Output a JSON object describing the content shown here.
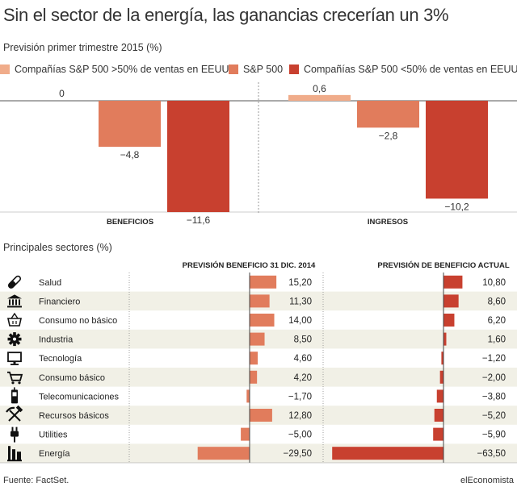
{
  "title": "Sin el sector de la energía, las ganancias crecerían un 3%",
  "top_subtitle": "Previsión primer trimestre 2015 (%)",
  "sectors_subtitle": "Principales sectores (%)",
  "source": "Fuente: FactSet.",
  "brand": "elEconomista",
  "colors": {
    "light": "#f0ac8a",
    "mid": "#e17c5c",
    "dark": "#c8402f",
    "stripe": "#f1f0e6"
  },
  "chart_data": [
    {
      "type": "bar",
      "categories": [
        "BENEFICIOS",
        "INGRESOS"
      ],
      "series": [
        {
          "name": "Compañías S&P 500 >50% de  ventas en EEUU",
          "values": [
            0,
            0.6
          ],
          "labels": [
            "0",
            "0,6"
          ]
        },
        {
          "name": "S&P 500",
          "values": [
            -4.8,
            -2.8
          ],
          "labels": [
            "−4,8",
            "−2,8"
          ]
        },
        {
          "name": "Compañías S&P 500 <50% de  ventas en EEUU",
          "values": [
            -11.6,
            -10.2
          ],
          "labels": [
            "−11,6",
            "−10,2"
          ]
        }
      ],
      "legend_position": "top"
    },
    {
      "type": "bar",
      "orientation": "horizontal",
      "categories": [
        "Salud",
        "Financiero",
        "Consumo no básico",
        "Industria",
        "Tecnología",
        "Consumo básico",
        "Telecomunicaciones",
        "Recursos básicos",
        "Utilities",
        "Energía"
      ],
      "icons": [
        "pill-icon",
        "bank-icon",
        "shopping-basket-icon",
        "gear-icon",
        "monitor-icon",
        "shopping-cart-icon",
        "mobile-phone-icon",
        "hammer-pick-icon",
        "plug-icon",
        "oil-refinery-icon"
      ],
      "series": [
        {
          "name": "PREVISIÓN BENEFICIO 31 DIC. 2014",
          "values": [
            15.2,
            11.3,
            14.0,
            8.5,
            4.6,
            4.2,
            -1.7,
            12.8,
            -5.0,
            -29.5
          ],
          "labels": [
            "15,20",
            "11,30",
            "14,00",
            "8,50",
            "4,60",
            "4,20",
            "−1,70",
            "12,80",
            "−5,00",
            "−29,50"
          ]
        },
        {
          "name": "PREVISIÓN DE BENEFICIO ACTUAL",
          "values": [
            10.8,
            8.6,
            6.2,
            1.6,
            -1.2,
            -2.0,
            -3.8,
            -5.2,
            -5.9,
            -63.5
          ],
          "labels": [
            "10,80",
            "8,60",
            "6,20",
            "1,60",
            "−1,20",
            "−2,00",
            "−3,80",
            "−5,20",
            "−5,90",
            "−63,50"
          ]
        }
      ]
    }
  ]
}
